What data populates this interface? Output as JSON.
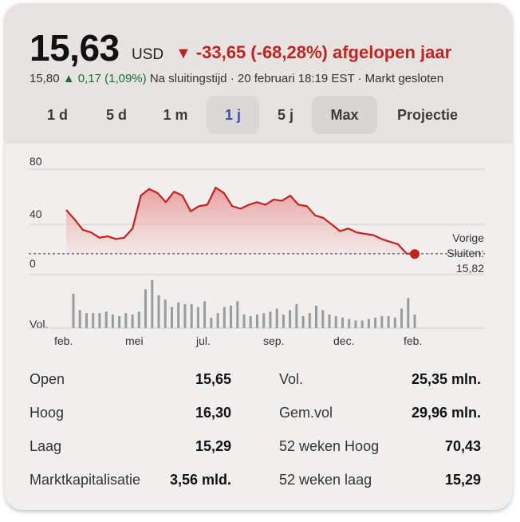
{
  "quote": {
    "price": "15,63",
    "currency": "USD",
    "change_arrow": "▼",
    "change_text": "-33,65 (-68,28%) afgelopen jaar",
    "after_price": "15,80",
    "after_arrow": "▲",
    "after_change": "0,17 (1,09%)",
    "after_status": "Na sluitingstijd · 20 februari 18:19 EST · Markt gesloten"
  },
  "tabs": [
    "1 d",
    "5 d",
    "1 m",
    "1 j",
    "5 j",
    "Max",
    "Projectie"
  ],
  "selected_tab": "1 j",
  "chart": {
    "y_ticks": [
      "80",
      "40",
      "0"
    ],
    "volume_label": "Vol.",
    "months": [
      "feb.",
      "mei",
      "jul.",
      "sep.",
      "dec.",
      "feb."
    ],
    "previous_close_label": "Vorige Sluiten:",
    "previous_close_value": "15,82"
  },
  "chart_data": {
    "type": "area",
    "title": "",
    "ylim": [
      0,
      80
    ],
    "reference_line": 15.82,
    "x_labels": [
      "feb.",
      "mei",
      "jul.",
      "sep.",
      "dec.",
      "feb."
    ],
    "series": [
      {
        "values": [
          49,
          42,
          34,
          32,
          28,
          29,
          27,
          28,
          35,
          60,
          65,
          62,
          55,
          63,
          60,
          48,
          52,
          53,
          66,
          62,
          52,
          50,
          53,
          55,
          53,
          57,
          56,
          60,
          53,
          52,
          45,
          43,
          38,
          33,
          35,
          32,
          31,
          30,
          27,
          25,
          23,
          16,
          15.63
        ]
      }
    ],
    "volume": [
      23,
      12,
      10,
      10,
      10,
      11,
      9,
      8,
      10,
      9,
      11,
      26,
      32,
      22,
      19,
      14,
      17,
      16,
      16,
      14,
      18,
      7,
      10,
      14,
      15,
      18,
      9,
      8,
      9,
      10,
      11,
      13,
      9,
      12,
      16,
      8,
      10,
      15,
      12,
      9,
      8,
      7,
      6,
      5,
      5,
      6,
      7,
      8,
      8,
      7,
      13,
      20,
      9
    ]
  },
  "stats": {
    "left": [
      {
        "label": "Open",
        "value": "15,65"
      },
      {
        "label": "Hoog",
        "value": "16,30"
      },
      {
        "label": "Laag",
        "value": "15,29"
      },
      {
        "label": "Marktkapitalisatie",
        "value": "3,56 mld."
      }
    ],
    "right": [
      {
        "label": "Vol.",
        "value": "25,35 mln."
      },
      {
        "label": "Gem.vol",
        "value": "29,96 mln."
      },
      {
        "label": "52 weken Hoog",
        "value": "70,43"
      },
      {
        "label": "52 weken laag",
        "value": "15,29"
      }
    ]
  },
  "colors": {
    "down": "#c5221f",
    "up": "#137333",
    "selected_tab_text": "#3a4fb8",
    "line": "#c5221f"
  }
}
